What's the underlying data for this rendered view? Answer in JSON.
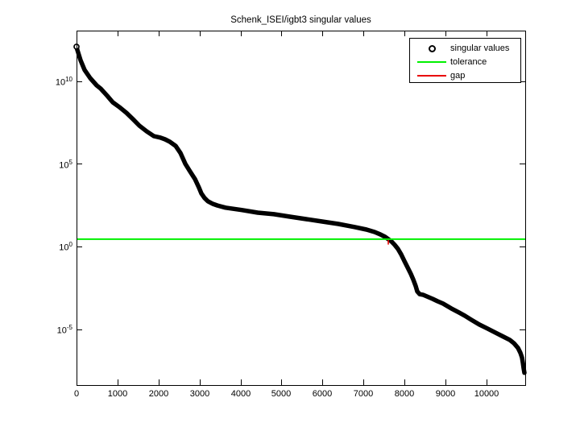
{
  "figure": {
    "title": "Schenk_ISEI/igbt3 singular values",
    "background": "#ffffff",
    "axis_color": "#000000"
  },
  "legend": {
    "position": "upper right",
    "items": [
      {
        "label": "singular values",
        "marker": "circle",
        "color": "#000000"
      },
      {
        "label": "tolerance",
        "marker": "line",
        "color": "#00f000"
      },
      {
        "label": "gap",
        "marker": "line",
        "color": "#e80000"
      }
    ]
  },
  "axes": {
    "x_tick_labels": [
      "0",
      "1000",
      "2000",
      "3000",
      "4000",
      "5000",
      "6000",
      "7000",
      "8000",
      "9000",
      "10000"
    ],
    "y_tick_labels": [
      {
        "base": "10",
        "exp": "10"
      },
      {
        "base": "10",
        "exp": "5"
      },
      {
        "base": "10",
        "exp": "0"
      },
      {
        "base": "10",
        "exp": "-5"
      }
    ]
  },
  "chart_data": {
    "type": "line",
    "title": "Schenk_ISEI/igbt3 singular values",
    "xlabel": "",
    "ylabel": "",
    "grid": false,
    "legend_position": "upper right",
    "x_axis": {
      "min": 0,
      "max": 10944,
      "ticks": [
        0,
        1000,
        2000,
        3000,
        4000,
        5000,
        6000,
        7000,
        8000,
        9000,
        10000
      ]
    },
    "y_axis": {
      "scale": "log",
      "min_log": -8.38,
      "max_log": 13.05,
      "tick_logs": [
        10,
        5,
        0,
        -5
      ]
    },
    "series": [
      {
        "name": "singular values",
        "style": "black circle markers, densely overlapping",
        "color": "#000000",
        "points": [
          [
            0,
            1200000000000.0
          ],
          [
            20,
            770000000000.0
          ],
          [
            98,
            180000000000.0
          ],
          [
            196,
            47000000000.0
          ],
          [
            334,
            15000000000.0
          ],
          [
            491,
            5500000000.0
          ],
          [
            589,
            3500000000.0
          ],
          [
            747,
            1300000000.0
          ],
          [
            884,
            520000000.0
          ],
          [
            1041,
            270000000.0
          ],
          [
            1218,
            120000000.0
          ],
          [
            1375,
            50000000.0
          ],
          [
            1533,
            20000000.0
          ],
          [
            1709,
            9200000.0
          ],
          [
            1886,
            4700000.0
          ],
          [
            2043,
            3800000.0
          ],
          [
            2161,
            3000000.0
          ],
          [
            2279,
            2100000.0
          ],
          [
            2417,
            1200000.0
          ],
          [
            2535,
            450000.0
          ],
          [
            2652,
            100000.0
          ],
          [
            2770,
            34000.0
          ],
          [
            2888,
            12000.0
          ],
          [
            2986,
            3600
          ],
          [
            3045,
            1600
          ],
          [
            3124,
            840
          ],
          [
            3202,
            540
          ],
          [
            3320,
            380
          ],
          [
            3438,
            300
          ],
          [
            3635,
            220
          ],
          [
            4028,
            160
          ],
          [
            4421,
            110
          ],
          [
            4814,
            89
          ],
          [
            5207,
            63
          ],
          [
            5600,
            45
          ],
          [
            5993,
            32
          ],
          [
            6386,
            23
          ],
          [
            6779,
            15
          ],
          [
            7074,
            10.5
          ],
          [
            7270,
            7.5
          ],
          [
            7408,
            5.4
          ],
          [
            7525,
            3.8
          ],
          [
            7604,
            2.75
          ],
          [
            7683,
            2.0
          ],
          [
            7761,
            1.25
          ],
          [
            7840,
            0.71
          ],
          [
            7919,
            0.33
          ],
          [
            7997,
            0.13
          ],
          [
            8076,
            0.054
          ],
          [
            8154,
            0.022
          ],
          [
            8213,
            0.01
          ],
          [
            8272,
            0.0041
          ],
          [
            8311,
            0.0019
          ],
          [
            8370,
            0.0013
          ],
          [
            8448,
            0.0012
          ],
          [
            8547,
            0.00095
          ],
          [
            8684,
            0.00068
          ],
          [
            8802,
            0.00049
          ],
          [
            8940,
            0.00035
          ],
          [
            9136,
            0.00018
          ],
          [
            9333,
            0.0001
          ],
          [
            9470,
            6.5e-05
          ],
          [
            9627,
            3.7e-05
          ],
          [
            9824,
            1.9e-05
          ],
          [
            10020,
            1.1e-05
          ],
          [
            10217,
            6.2e-06
          ],
          [
            10413,
            3.5e-06
          ],
          [
            10570,
            2.2e-06
          ],
          [
            10668,
            1.4e-06
          ],
          [
            10767,
            7.3e-07
          ],
          [
            10826,
            3.7e-07
          ],
          [
            10865,
            1.9e-07
          ],
          [
            10885,
            9.7e-08
          ],
          [
            10904,
            4.4e-08
          ],
          [
            10924,
            2.3e-08
          ]
        ]
      },
      {
        "name": "tolerance",
        "style": "horizontal line across full x range",
        "color": "#00f000",
        "value": 2.75
      },
      {
        "name": "gap",
        "style": "short vertical segment at tolerance crossing",
        "color": "#e80000",
        "x": 7604,
        "y_from": 2.75,
        "y_to": 1.3
      }
    ]
  }
}
